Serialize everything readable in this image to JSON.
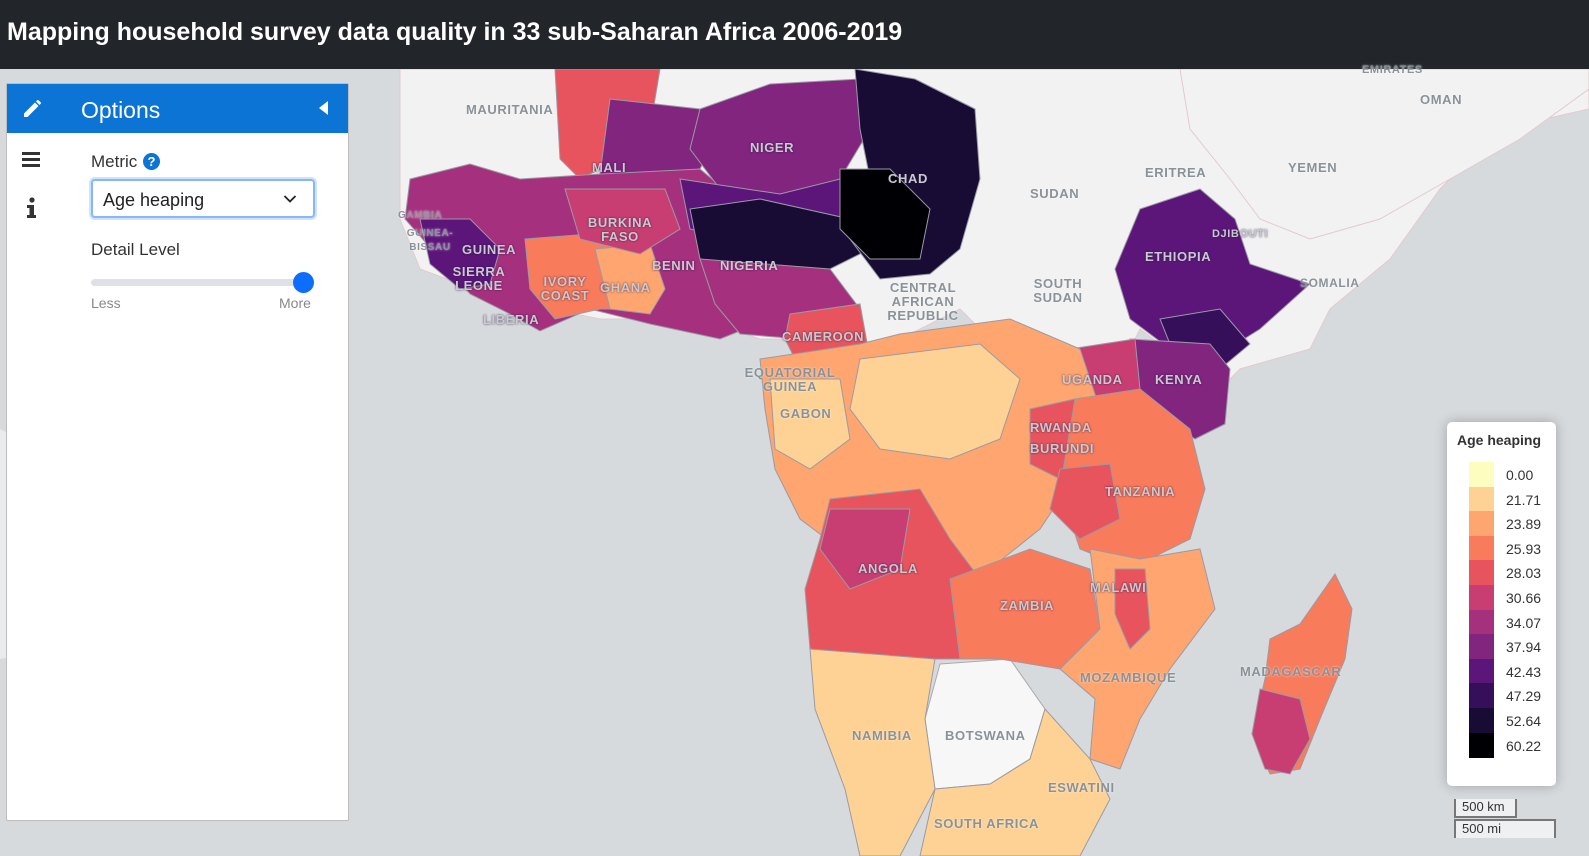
{
  "header": {
    "title": "Mapping household survey data quality in 33 sub-Saharan Africa 2006-2019"
  },
  "sidebar": {
    "title": "Options",
    "icons": {
      "edit": "pencil-icon",
      "collapse": "caret-left-icon",
      "menu": "menu-icon",
      "info": "info-icon",
      "help": "question-circle-icon"
    },
    "metric": {
      "label": "Metric",
      "value": "Age heaping"
    },
    "detail": {
      "label": "Detail Level",
      "min_label": "Less",
      "max_label": "More",
      "value_fraction": 1.0
    }
  },
  "map": {
    "labels": [
      "MAURITANIA",
      "MALI",
      "NIGER",
      "CHAD",
      "SUDAN",
      "ERITREA",
      "YEMEN",
      "OMAN",
      "EMIRATES",
      "GAMBIA",
      "GUINEA-BISSAU",
      "GUINEA",
      "SIERRA LEONE",
      "LIBERIA",
      "BURKINA FASO",
      "IVORY COAST",
      "GHANA",
      "BENIN",
      "NIGERIA",
      "CAMEROON",
      "CENTRAL AFRICAN REPUBLIC",
      "SOUTH SUDAN",
      "ETHIOPIA",
      "DJIBOUTI",
      "SOMALIA",
      "EQUATORIAL GUINEA",
      "GABON",
      "UGANDA",
      "KENYA",
      "RWANDA",
      "BURUNDI",
      "TANZANIA",
      "ANGOLA",
      "ZAMBIA",
      "MALAWI",
      "MOZAMBIQUE",
      "MADAGASCAR",
      "NAMIBIA",
      "BOTSWANA",
      "ESWATINI",
      "SOUTH AFRICA"
    ]
  },
  "legend": {
    "title": "Age heaping",
    "items": [
      {
        "value": "0.00",
        "color": "#fcfdbf"
      },
      {
        "value": "21.71",
        "color": "#fed294"
      },
      {
        "value": "23.89",
        "color": "#fea570"
      },
      {
        "value": "25.93",
        "color": "#f87b5c"
      },
      {
        "value": "28.03",
        "color": "#e8545d"
      },
      {
        "value": "30.66",
        "color": "#c83e73"
      },
      {
        "value": "34.07",
        "color": "#a5317e"
      },
      {
        "value": "37.94",
        "color": "#81257f"
      },
      {
        "value": "42.43",
        "color": "#5c167a"
      },
      {
        "value": "47.29",
        "color": "#360f5a"
      },
      {
        "value": "52.64",
        "color": "#180c35"
      },
      {
        "value": "60.22",
        "color": "#000004"
      }
    ]
  },
  "scale": {
    "km": "500 km",
    "mi": "500 mi"
  }
}
